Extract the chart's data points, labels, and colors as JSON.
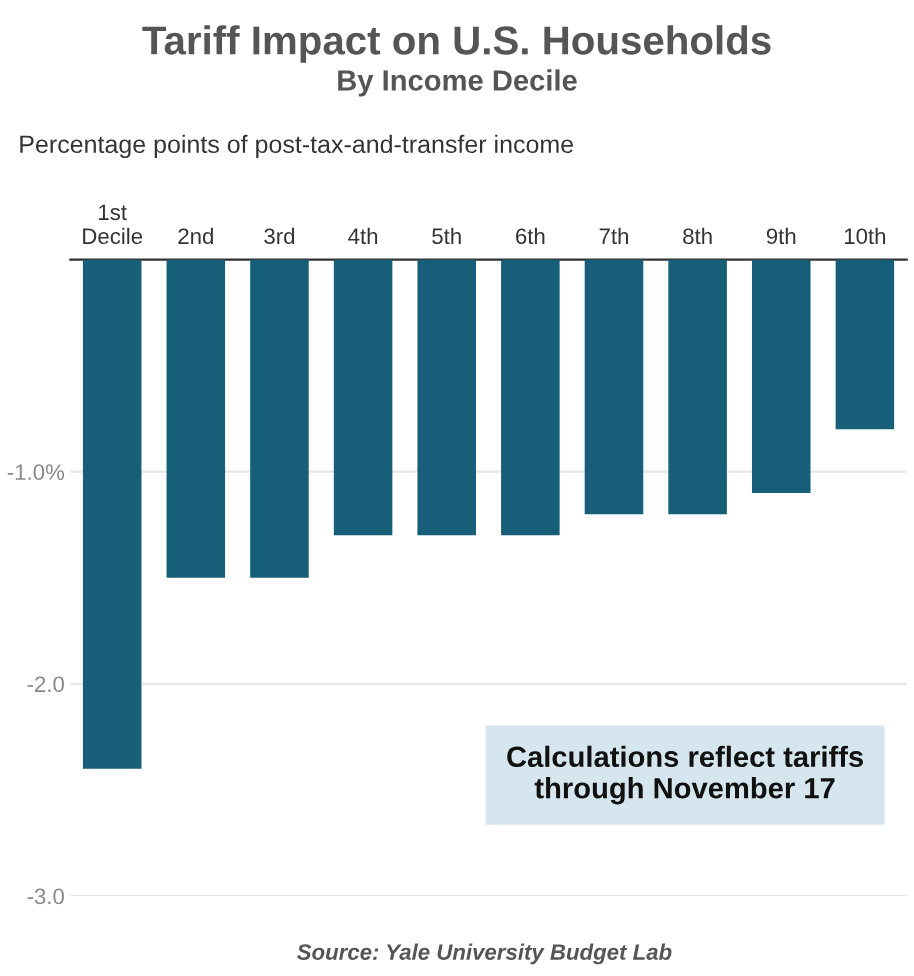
{
  "chart_data": {
    "type": "bar",
    "title": "Tariff Impact on U.S. Households",
    "subtitle": "By Income Decile",
    "ylabel": "Percentage points of post-tax-and-transfer income",
    "categories": [
      "1st\nDecile",
      "2nd",
      "3rd",
      "4th",
      "5th",
      "6th",
      "7th",
      "8th",
      "9th",
      "10th"
    ],
    "values": [
      -2.4,
      -1.5,
      -1.5,
      -1.3,
      -1.3,
      -1.3,
      -1.2,
      -1.2,
      -1.1,
      -0.8
    ],
    "color": "#175e78",
    "ylim": [
      -3.0,
      0
    ],
    "yticks": [
      {
        "value": -1.0,
        "label": "-1.0%"
      },
      {
        "value": -2.0,
        "label": "-2.0"
      },
      {
        "value": -3.0,
        "label": "-3.0"
      }
    ],
    "grid": "y",
    "annotations": [
      "Calculations reflect tariffs\nthrough November 17",
      "Source: Yale University Budget Lab"
    ]
  }
}
